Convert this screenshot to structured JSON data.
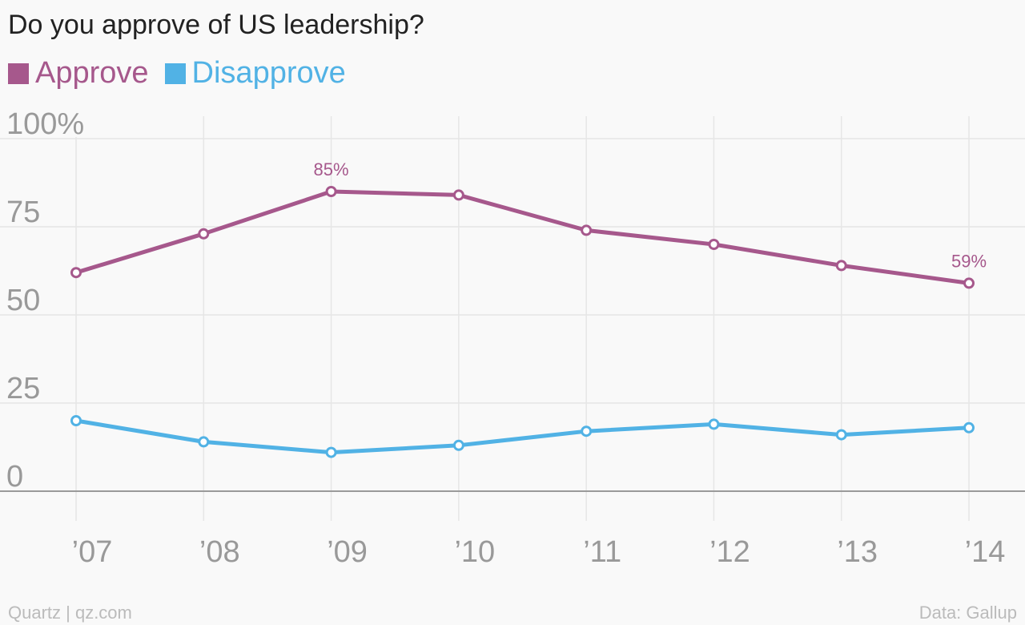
{
  "title": "Do you approve of US leadership?",
  "legend": [
    {
      "label": "Approve",
      "color": "#a6588c"
    },
    {
      "label": "Disapprove",
      "color": "#51b2e5"
    }
  ],
  "footer": {
    "source_left": "Quartz | qz.com",
    "source_right": "Data: Gallup"
  },
  "chart_data": {
    "type": "line",
    "x": [
      "’07",
      "’08",
      "’09",
      "’10",
      "’11",
      "’12",
      "’13",
      "’14"
    ],
    "series": [
      {
        "name": "Approve",
        "color": "#a6588c",
        "values": [
          62,
          73,
          85,
          84,
          74,
          70,
          64,
          59
        ]
      },
      {
        "name": "Disapprove",
        "color": "#51b2e5",
        "values": [
          20,
          14,
          11,
          13,
          17,
          19,
          16,
          18
        ]
      }
    ],
    "ylim": [
      0,
      100
    ],
    "yticks": [
      0,
      25,
      50,
      75,
      100
    ],
    "ytick_labels": [
      "0",
      "25",
      "50",
      "75",
      "100%"
    ],
    "annotations": [
      {
        "series": "Approve",
        "x": "’09",
        "text": "85%"
      },
      {
        "series": "Approve",
        "x": "’14",
        "text": "59%"
      }
    ],
    "grid": true
  }
}
